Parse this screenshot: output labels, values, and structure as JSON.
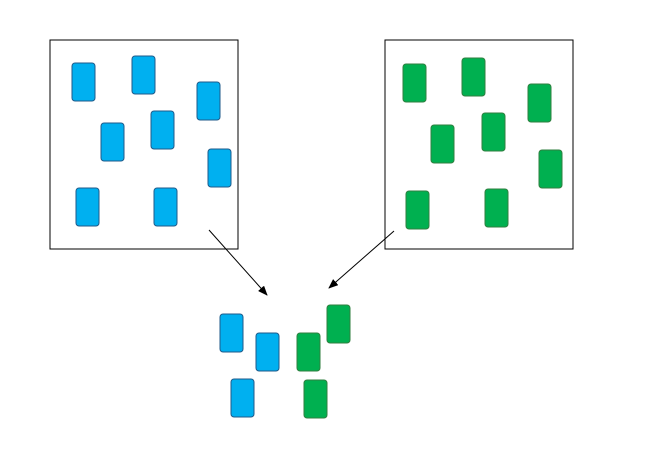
{
  "colors": {
    "blue_fill": "#00b0f0",
    "blue_stroke": "#1f5a8a",
    "green_fill": "#00b050",
    "green_stroke": "#2f7f3f",
    "box_stroke": "#000000",
    "arrow": "#000000"
  },
  "groups": [
    {
      "name": "blue-source-box",
      "color": "blue",
      "item_count": 8
    },
    {
      "name": "green-source-box",
      "color": "green",
      "item_count": 8
    },
    {
      "name": "mixed-sample",
      "blue_count": 3,
      "green_count": 3
    }
  ]
}
